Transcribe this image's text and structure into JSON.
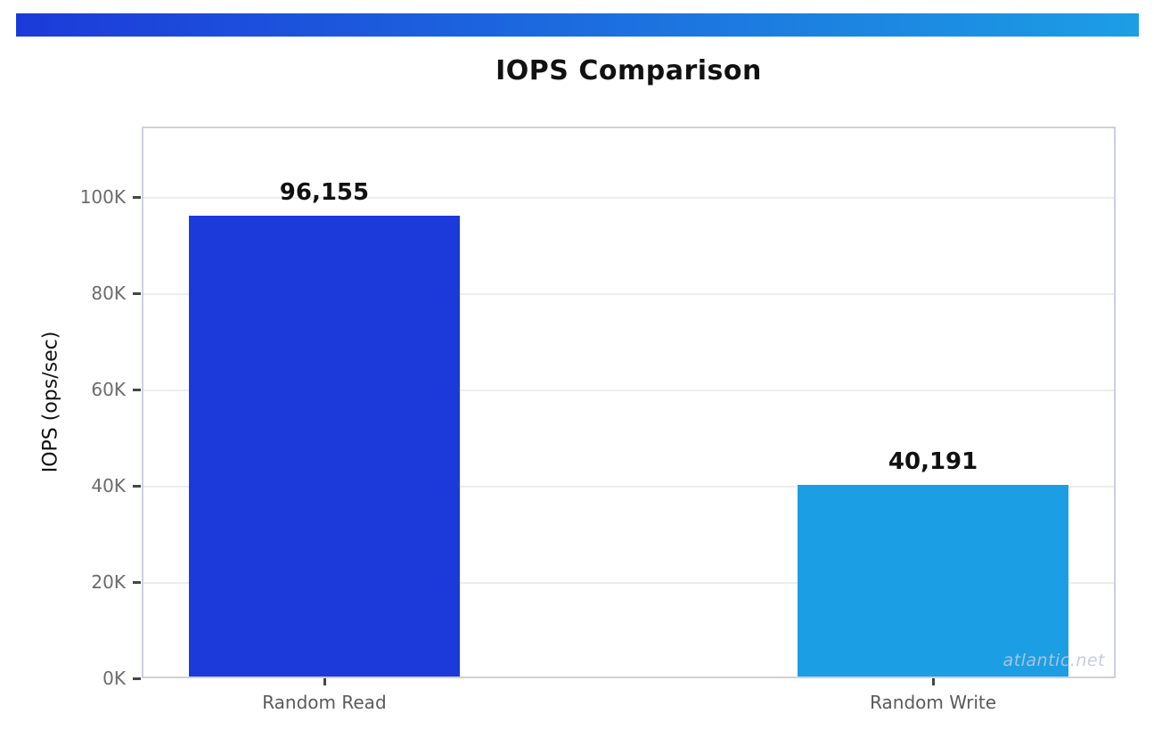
{
  "header": {
    "gradient_from": "#1c3ad9",
    "gradient_to": "#1c9ee4"
  },
  "watermark": "atlantic.net",
  "colors": {
    "grid": "#ececf2",
    "spine": "#ccd0de",
    "tick": "#454545",
    "ytick_label": "#6b6b6b",
    "xtick_label": "#5a5a5a",
    "title": "#111111",
    "value_label": "#111111"
  },
  "chart_data": {
    "type": "bar",
    "title": "IOPS Comparison",
    "xlabel": "",
    "ylabel": "IOPS (ops/sec)",
    "categories": [
      "Random Read",
      "Random Write"
    ],
    "values": [
      96155,
      40191
    ],
    "value_labels": [
      "96,155",
      "40,191"
    ],
    "bar_colors": [
      "#1c3ad9",
      "#1c9ee4"
    ],
    "yticks": [
      {
        "value": 0,
        "label": "0K"
      },
      {
        "value": 20000,
        "label": "20K"
      },
      {
        "value": 40000,
        "label": "40K"
      },
      {
        "value": 60000,
        "label": "60K"
      },
      {
        "value": 80000,
        "label": "80K"
      },
      {
        "value": 100000,
        "label": "100K"
      }
    ],
    "ylim": [
      0,
      114600
    ],
    "grid": "horizontal",
    "legend": "none"
  }
}
